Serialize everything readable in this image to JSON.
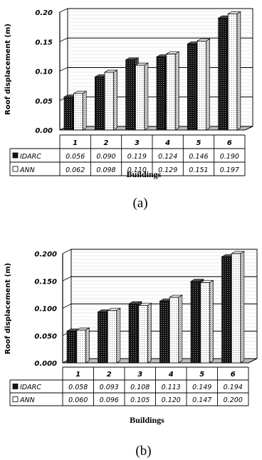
{
  "chart_data": [
    {
      "type": "bar",
      "caption": "(a)",
      "categories": [
        "1",
        "2",
        "3",
        "4",
        "5",
        "6"
      ],
      "series": [
        {
          "name": "IDARC",
          "values": [
            0.056,
            0.09,
            0.119,
            0.124,
            0.146,
            0.19
          ],
          "labels": [
            "0.056",
            "0.090",
            "0.119",
            "0.124",
            "0.146",
            "0.190"
          ],
          "pattern": "dark-dotted"
        },
        {
          "name": "ANN",
          "values": [
            0.062,
            0.098,
            0.11,
            0.129,
            0.151,
            0.197
          ],
          "labels": [
            "0.062",
            "0.098",
            "0.110",
            "0.129",
            "0.151",
            "0.197"
          ],
          "pattern": "light-dotted"
        }
      ],
      "xlabel": "Buildings",
      "ylabel": "Roof displacement (m)",
      "ylim": [
        0,
        0.2
      ],
      "yticks": [
        "0.00",
        "0.05",
        "0.10",
        "0.15",
        "0.20"
      ],
      "ytick_values": [
        0,
        0.05,
        0.1,
        0.15,
        0.2
      ],
      "grid": true,
      "legend": "data table below plot"
    },
    {
      "type": "bar",
      "caption": "(b)",
      "categories": [
        "1",
        "2",
        "3",
        "4",
        "5",
        "6"
      ],
      "series": [
        {
          "name": "IDARC",
          "values": [
            0.058,
            0.093,
            0.108,
            0.113,
            0.149,
            0.194
          ],
          "labels": [
            "0.058",
            "0.093",
            "0.108",
            "0.113",
            "0.149",
            "0.194"
          ],
          "pattern": "dark-dotted"
        },
        {
          "name": "ANN",
          "values": [
            0.06,
            0.096,
            0.105,
            0.12,
            0.147,
            0.2
          ],
          "labels": [
            "0.060",
            "0.096",
            "0.105",
            "0.120",
            "0.147",
            "0.200"
          ],
          "pattern": "light-dotted"
        }
      ],
      "xlabel": "Buildings",
      "ylabel": "Roof displacement (m)",
      "ylim": [
        0,
        0.2
      ],
      "yticks": [
        "0.000",
        "0.050",
        "0.100",
        "0.150",
        "0.200"
      ],
      "ytick_values": [
        0,
        0.05,
        0.1,
        0.15,
        0.2
      ],
      "grid": true,
      "legend": "data table below plot"
    }
  ]
}
